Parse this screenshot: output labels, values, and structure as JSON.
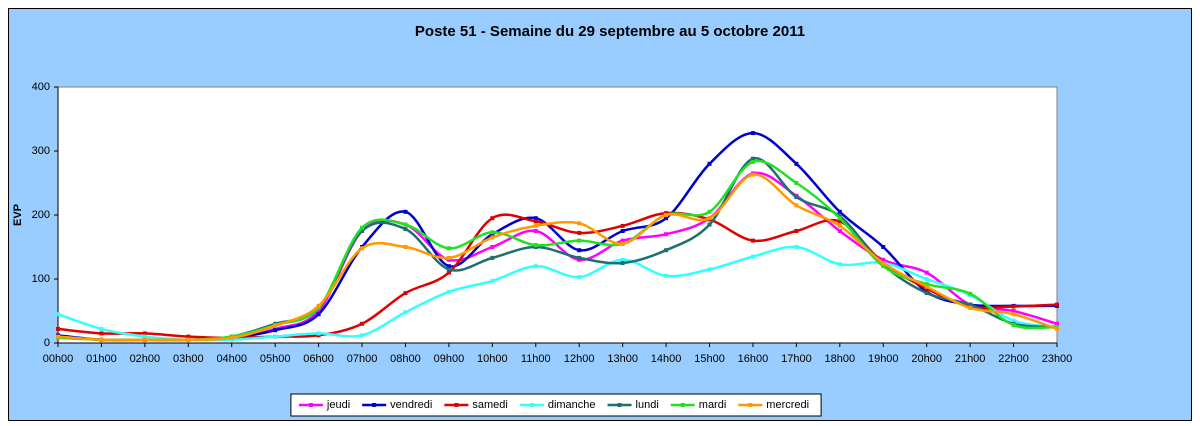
{
  "chart_data": {
    "type": "line",
    "title": "Poste 51 - Semaine du 29 septembre au 5 octobre 2011",
    "y_label": "EVP",
    "categories": [
      "00h00",
      "01h00",
      "02h00",
      "03h00",
      "04h00",
      "05h00",
      "06h00",
      "07h00",
      "08h00",
      "09h00",
      "10h00",
      "11h00",
      "12h00",
      "13h00",
      "14h00",
      "15h00",
      "16h00",
      "17h00",
      "18h00",
      "19h00",
      "20h00",
      "21h00",
      "22h00",
      "23h00"
    ],
    "ylim": [
      0,
      400
    ],
    "yticks": [
      0,
      100,
      200,
      300,
      400
    ],
    "grid": false,
    "legend": "bottom",
    "series": [
      {
        "name": "jeudi",
        "color": "#ff00ff",
        "values": [
          10,
          5,
          5,
          5,
          8,
          22,
          50,
          175,
          185,
          130,
          150,
          175,
          130,
          160,
          170,
          195,
          265,
          230,
          175,
          130,
          110,
          60,
          50,
          30
        ]
      },
      {
        "name": "vendredi",
        "color": "#0000cc",
        "values": [
          12,
          5,
          5,
          5,
          8,
          20,
          45,
          150,
          205,
          120,
          170,
          195,
          145,
          175,
          195,
          280,
          328,
          280,
          205,
          150,
          80,
          60,
          58,
          58
        ]
      },
      {
        "name": "samedi",
        "color": "#e00000",
        "values": [
          22,
          15,
          15,
          10,
          8,
          10,
          12,
          30,
          78,
          110,
          195,
          190,
          172,
          183,
          203,
          193,
          160,
          175,
          190,
          125,
          85,
          57,
          57,
          60
        ]
      },
      {
        "name": "dimanche",
        "color": "#33ffff",
        "values": [
          45,
          22,
          10,
          5,
          5,
          10,
          15,
          12,
          48,
          80,
          97,
          120,
          103,
          130,
          105,
          115,
          135,
          150,
          123,
          125,
          100,
          75,
          35,
          25
        ]
      },
      {
        "name": "lundi",
        "color": "#1f6f6f",
        "values": [
          10,
          5,
          5,
          5,
          10,
          30,
          55,
          175,
          178,
          115,
          133,
          150,
          133,
          125,
          145,
          185,
          288,
          228,
          198,
          122,
          78,
          60,
          30,
          25
        ]
      },
      {
        "name": "mardi",
        "color": "#22e022",
        "values": [
          8,
          5,
          5,
          5,
          10,
          28,
          55,
          180,
          185,
          148,
          173,
          153,
          160,
          155,
          200,
          205,
          283,
          250,
          195,
          120,
          92,
          77,
          28,
          25
        ]
      },
      {
        "name": "mercredi",
        "color": "#ff9900",
        "values": [
          10,
          5,
          5,
          5,
          8,
          27,
          58,
          148,
          150,
          133,
          165,
          183,
          187,
          155,
          200,
          195,
          263,
          215,
          183,
          125,
          88,
          55,
          45,
          22
        ]
      }
    ]
  }
}
